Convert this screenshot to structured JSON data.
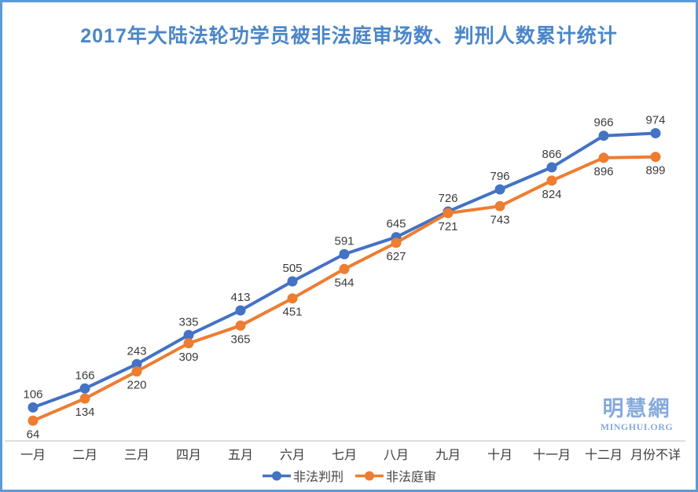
{
  "title": "2017年大陆法轮功学员被非法庭审场数、判刑人数累计统计",
  "chart_data": {
    "type": "line",
    "categories": [
      "一月",
      "二月",
      "三月",
      "四月",
      "五月",
      "六月",
      "七月",
      "八月",
      "九月",
      "十月",
      "十一月",
      "十二月",
      "月份不详"
    ],
    "series": [
      {
        "name": "非法判刑",
        "color": "#4472C4",
        "label_position": "above",
        "values": [
          106,
          166,
          243,
          335,
          413,
          505,
          591,
          645,
          726,
          796,
          866,
          966,
          974
        ]
      },
      {
        "name": "非法庭审",
        "color": "#ED7D31",
        "label_position": "below",
        "values": [
          64,
          134,
          220,
          309,
          365,
          451,
          544,
          627,
          721,
          743,
          824,
          896,
          899
        ]
      }
    ],
    "title": "2017年大陆法轮功学员被非法庭审场数、判刑人数累计统计",
    "xlabel": "",
    "ylabel": "",
    "ylim": [
      0,
      1200
    ],
    "grid": false,
    "data_labels": true,
    "legend_position": "bottom"
  },
  "watermark": {
    "name_cjk": "明慧網",
    "name_latin": "MINGHUI.ORG"
  },
  "style_colors": {
    "series_blue": "#4472C4",
    "series_orange": "#ED7D31",
    "title_blue": "#4A86C8",
    "border_blue": "#5B9BD5",
    "watermark_blue": "#85AADC",
    "axis_line_gray": "#C9C9C9",
    "label_text": "#3B3B3B"
  }
}
